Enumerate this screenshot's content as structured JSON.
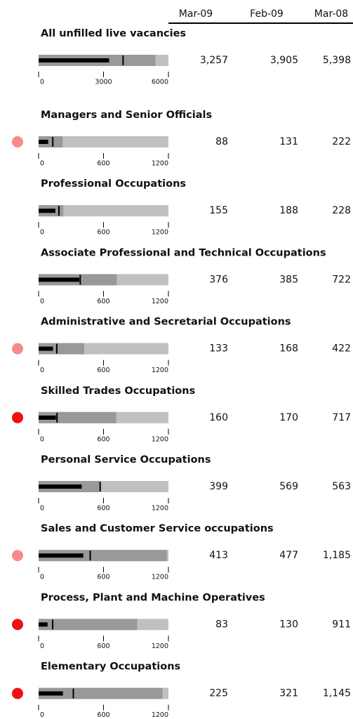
{
  "columns": [
    "Mar-09",
    "Feb-09",
    "Mar-08"
  ],
  "style": {
    "bar_color": "#000000",
    "range_color": "#999999",
    "background_color": "#c0c0c0"
  },
  "chart_data": [
    {
      "type": "bullet",
      "title": "All unfilled live vacancies",
      "values": [
        3257,
        3905,
        5398
      ],
      "value_labels": [
        "3,257",
        "3,905",
        "5,398"
      ],
      "xlim": [
        0,
        6000
      ],
      "xticks": [
        0,
        3000,
        6000
      ]
    },
    {
      "type": "bullet",
      "title": "Managers and Senior Officials",
      "values": [
        88,
        131,
        222
      ],
      "xlim": [
        0,
        1200
      ],
      "xticks": [
        0,
        600,
        1200
      ],
      "status_color": "#f78a8a"
    },
    {
      "type": "bullet",
      "title": "Professional Occupations",
      "values": [
        155,
        188,
        228
      ],
      "xlim": [
        0,
        1200
      ],
      "xticks": [
        0,
        600,
        1200
      ]
    },
    {
      "type": "bullet",
      "title": "Associate Professional and Technical Occupations",
      "values": [
        376,
        385,
        722
      ],
      "xlim": [
        0,
        1200
      ],
      "xticks": [
        0,
        600,
        1200
      ]
    },
    {
      "type": "bullet",
      "title": "Administrative and Secretarial Occupations",
      "values": [
        133,
        168,
        422
      ],
      "xlim": [
        0,
        1200
      ],
      "xticks": [
        0,
        600,
        1200
      ],
      "status_color": "#f78a8a"
    },
    {
      "type": "bullet",
      "title": "Skilled Trades Occupations",
      "values": [
        160,
        170,
        717
      ],
      "xlim": [
        0,
        1200
      ],
      "xticks": [
        0,
        600,
        1200
      ],
      "status_color": "#ee1111"
    },
    {
      "type": "bullet",
      "title": "Personal Service Occupations",
      "values": [
        399,
        569,
        563
      ],
      "xlim": [
        0,
        1200
      ],
      "xticks": [
        0,
        600,
        1200
      ]
    },
    {
      "type": "bullet",
      "title": "Sales and Customer Service occupations",
      "values": [
        413,
        477,
        1185
      ],
      "value_labels": [
        "413",
        "477",
        "1,185"
      ],
      "xlim": [
        0,
        1200
      ],
      "xticks": [
        0,
        600,
        1200
      ],
      "status_color": "#f78a8a"
    },
    {
      "type": "bullet",
      "title": "Process, Plant and Machine Operatives",
      "values": [
        83,
        130,
        911
      ],
      "xlim": [
        0,
        1200
      ],
      "xticks": [
        0,
        600,
        1200
      ],
      "status_color": "#ee1111"
    },
    {
      "type": "bullet",
      "title": "Elementary Occupations",
      "values": [
        225,
        321,
        1145
      ],
      "value_labels": [
        "225",
        "321",
        "1,145"
      ],
      "xlim": [
        0,
        1200
      ],
      "xticks": [
        0,
        600,
        1200
      ],
      "status_color": "#ee1111"
    }
  ]
}
